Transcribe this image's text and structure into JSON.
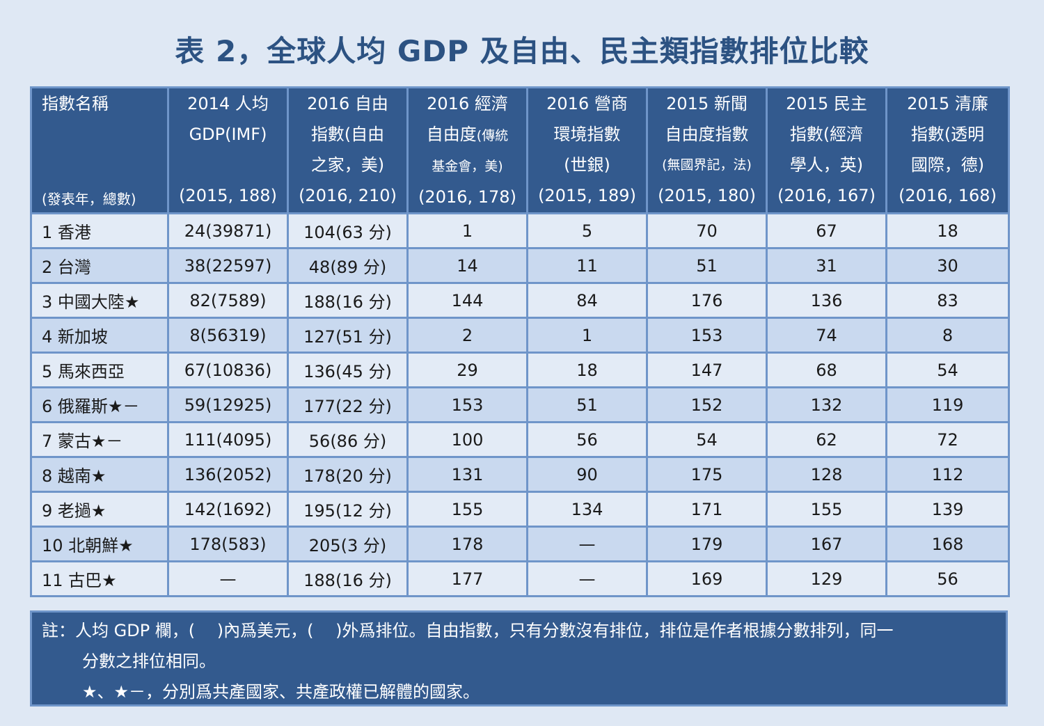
{
  "title": "表 2，全球人均 GDP 及自由、民主類指數排位比較",
  "header": {
    "first": {
      "line1": "指數名稱",
      "sub": "(發表年，總數)"
    },
    "cols": [
      {
        "l1": "2014 人均",
        "l2": "GDP(IMF)",
        "l3": "",
        "l4": "(2015, 188)"
      },
      {
        "l1": "2016 自由",
        "l2": "指數(自由",
        "l3": "之家，美)",
        "l4": "(2016, 210)"
      },
      {
        "l1": "2016 經濟",
        "l2a": "自由度",
        "l2b": "(傳統",
        "l3": "基金會，美)",
        "l4": "(2016, 178)"
      },
      {
        "l1": "2016 營商",
        "l2": "環境指數",
        "l3": "(世銀)",
        "l4": "(2015, 189)"
      },
      {
        "l1": "2015 新聞",
        "l2": "自由度指數",
        "l3": "(無國界記，法)",
        "l4": "(2015, 180)"
      },
      {
        "l1": "2015 民主",
        "l2": "指數(經濟",
        "l3": "學人，英)",
        "l4": "(2016, 167)"
      },
      {
        "l1": "2015 清廉",
        "l2": "指數(透明",
        "l3": "國際，德)",
        "l4": "(2016, 168)"
      }
    ]
  },
  "rows": [
    [
      "1 香港",
      "24(39871)",
      "104(63 分)",
      "1",
      "5",
      "70",
      "67",
      "18"
    ],
    [
      "2 台灣",
      "38(22597)",
      "48(89 分)",
      "14",
      "11",
      "51",
      "31",
      "30"
    ],
    [
      "3 中國大陸★",
      "82(7589)",
      "188(16 分)",
      "144",
      "84",
      "176",
      "136",
      "83"
    ],
    [
      "4 新加坡",
      "8(56319)",
      "127(51 分)",
      "2",
      "1",
      "153",
      "74",
      "8"
    ],
    [
      "5 馬來西亞",
      "67(10836)",
      "136(45 分)",
      "29",
      "18",
      "147",
      "68",
      "54"
    ],
    [
      "6 俄羅斯★－",
      "59(12925)",
      "177(22 分)",
      "153",
      "51",
      "152",
      "132",
      "119"
    ],
    [
      "7 蒙古★－",
      "111(4095)",
      "56(86 分)",
      "100",
      "56",
      "54",
      "62",
      "72"
    ],
    [
      "8 越南★",
      "136(2052)",
      "178(20 分)",
      "131",
      "90",
      "175",
      "128",
      "112"
    ],
    [
      "9 老撾★",
      "142(1692)",
      "195(12 分)",
      "155",
      "134",
      "171",
      "155",
      "139"
    ],
    [
      "10 北朝鮮★",
      "178(583)",
      "205(3 分)",
      "178",
      "—",
      "179",
      "167",
      "168"
    ],
    [
      "11 古巴★",
      "—",
      "188(16 分)",
      "177",
      "—",
      "169",
      "129",
      "56"
    ]
  ],
  "note": {
    "line1": "註：人均 GDP 欄，(　 )內爲美元，(　 )外爲排位。自由指數，只有分數沒有排位，排位是作者根據分數排列，同一",
    "line2": "分數之排位相同。",
    "line3": "★、★－，分別爲共產國家、共產政權已解體的國家。"
  }
}
